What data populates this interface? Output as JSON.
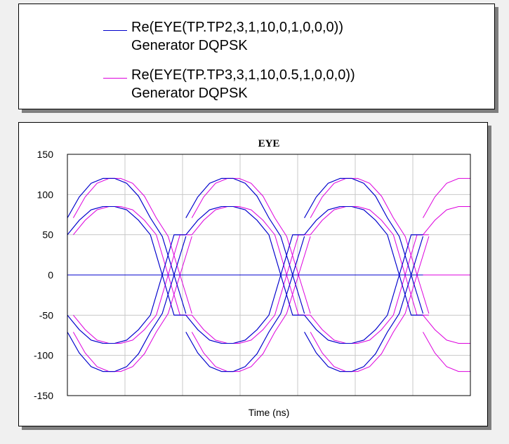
{
  "legend": [
    {
      "line1": "Re(EYE(TP.TP2,3,1,10,0,1,0,0,0))",
      "line2": "Generator DQPSK",
      "color": "#0000cc"
    },
    {
      "line1": "Re(EYE(TP.TP3,3,1,10,0.5,1,0,0,0))",
      "line2": "Generator DQPSK",
      "color": "#dd00dd"
    }
  ],
  "chart_data": {
    "type": "line",
    "title": "EYE",
    "xlabel": "Time (ns)",
    "ylabel": "",
    "xlim": [
      0,
      3.4
    ],
    "ylim": [
      -150,
      150
    ],
    "xticks_labeled": false,
    "yticks": [
      150,
      100,
      50,
      0,
      -50,
      -100,
      -150
    ],
    "grid": true,
    "series": [
      {
        "name": "Re(EYE(TP.TP2,3,1,10,0,1,0,0,0))",
        "color": "#0000cc",
        "x": [
          0,
          0.1,
          0.2,
          0.3,
          0.4,
          0.5,
          0.6,
          0.7,
          0.8,
          0.9,
          1.0
        ],
        "traces": [
          [
            71,
            97,
            114,
            120,
            120,
            114,
            98,
            71,
            48,
            0,
            -48
          ],
          [
            50,
            68,
            81,
            85,
            85,
            81,
            68,
            50,
            0,
            -50,
            -50
          ],
          [
            -50,
            -68,
            -81,
            -85,
            -85,
            -81,
            -68,
            -50,
            0,
            50,
            50
          ],
          [
            -71,
            -97,
            -114,
            -120,
            -120,
            -114,
            -98,
            -71,
            -48,
            0,
            48
          ],
          [
            0,
            0,
            0,
            0,
            0,
            0,
            0,
            0,
            0,
            0,
            0
          ]
        ]
      },
      {
        "name": "Re(EYE(TP.TP3,3,1,10,0.5,1,0,0,0))",
        "color": "#dd00dd",
        "x": [
          3.0,
          3.1,
          3.2,
          3.3,
          3.4
        ],
        "traces": [
          [
            71,
            97,
            114,
            120,
            120
          ],
          [
            50,
            68,
            81,
            85,
            85
          ],
          [
            0,
            0,
            0,
            0,
            0
          ],
          [
            -50,
            -68,
            -81,
            -85,
            -85
          ],
          [
            -71,
            -97,
            -114,
            -120,
            -120
          ]
        ]
      }
    ]
  }
}
